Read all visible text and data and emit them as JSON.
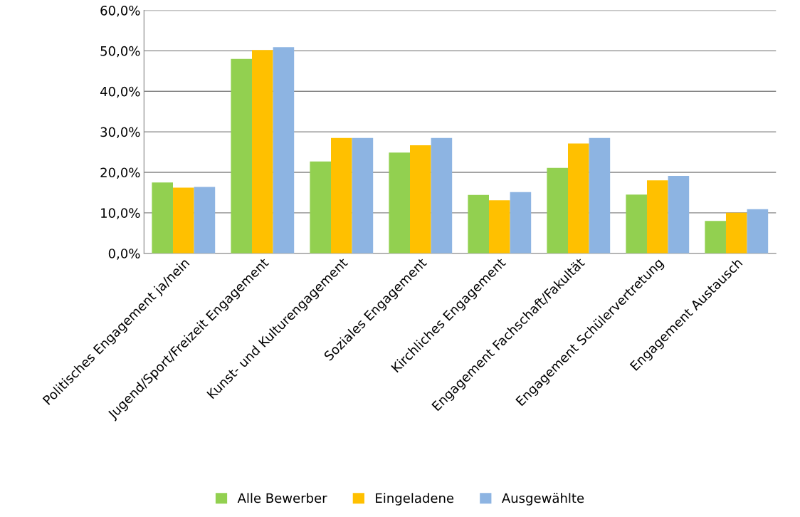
{
  "chart_data": {
    "type": "bar",
    "categories": [
      "Politisches Engagement ja/nein",
      "Jugend/Sport/Freizeit Engagement",
      "Kunst- und Kulturengagement",
      "Soziales Engagement",
      "Kirchliches Engagement",
      "Engagement Fachschaft/Fakultät",
      "Engagement Schülervertretung",
      "Engagement Austausch"
    ],
    "series": [
      {
        "name": "Alle Bewerber",
        "color": "#92d050",
        "values": [
          17.5,
          48.0,
          22.7,
          24.9,
          14.4,
          21.1,
          14.5,
          8.0
        ]
      },
      {
        "name": "Eingeladene",
        "color": "#ffc000",
        "values": [
          16.2,
          50.2,
          28.5,
          26.7,
          13.1,
          27.1,
          18.0,
          10.0
        ]
      },
      {
        "name": "Ausgewählte",
        "color": "#8db4e2",
        "values": [
          16.4,
          50.9,
          28.5,
          28.5,
          15.1,
          28.5,
          19.1,
          10.9
        ]
      }
    ],
    "ylim": [
      0,
      60
    ],
    "yticks": [
      {
        "value": 0,
        "label": "0,0%"
      },
      {
        "value": 10,
        "label": "10,0%"
      },
      {
        "value": 20,
        "label": "20,0%"
      },
      {
        "value": 30,
        "label": "30,0%"
      },
      {
        "value": 40,
        "label": "40,0%"
      },
      {
        "value": 50,
        "label": "50,0%"
      },
      {
        "value": 60,
        "label": "60,0%"
      }
    ],
    "grid": "y",
    "legend": "bottom"
  }
}
